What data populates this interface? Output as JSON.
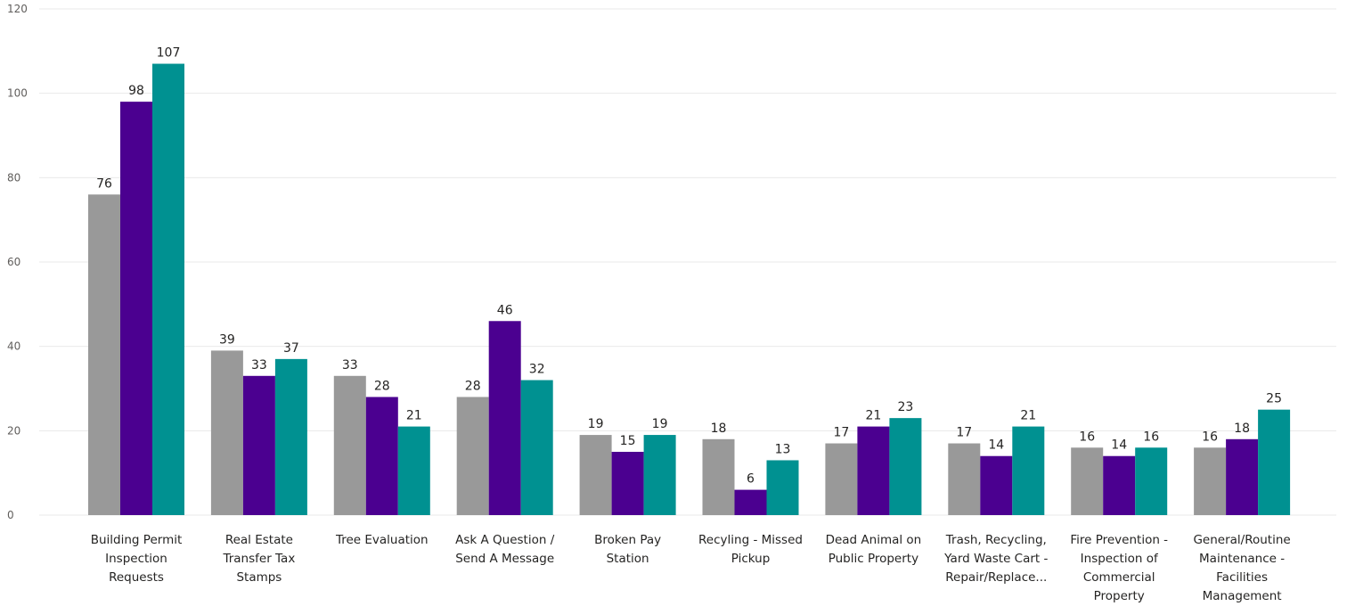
{
  "chart_data": {
    "type": "bar",
    "categories": [
      [
        "Building Permit",
        "Inspection",
        "Requests"
      ],
      [
        "Real Estate",
        "Transfer Tax",
        "Stamps"
      ],
      [
        "Tree Evaluation"
      ],
      [
        "Ask A Question /",
        "Send A Message"
      ],
      [
        "Broken Pay",
        "Station"
      ],
      [
        "Recyling - Missed",
        "Pickup"
      ],
      [
        "Dead Animal on",
        "Public Property"
      ],
      [
        "Trash, Recycling,",
        "Yard Waste Cart -",
        "Repair/Replace..."
      ],
      [
        "Fire Prevention -",
        "Inspection of",
        "Commercial",
        "Property"
      ],
      [
        "General/Routine",
        "Maintenance -",
        "Facilities",
        "Management"
      ]
    ],
    "series": [
      {
        "color": "#999999",
        "values": [
          76,
          39,
          33,
          28,
          19,
          18,
          17,
          17,
          16,
          16
        ]
      },
      {
        "color": "#4B0090",
        "values": [
          98,
          33,
          28,
          46,
          15,
          6,
          21,
          14,
          14,
          18
        ]
      },
      {
        "color": "#009191",
        "values": [
          107,
          37,
          21,
          32,
          19,
          13,
          23,
          21,
          16,
          25
        ]
      }
    ],
    "ylim": [
      0,
      120
    ],
    "yticks": [
      0,
      20,
      40,
      60,
      80,
      100,
      120
    ],
    "grid": true,
    "data_labels": true
  }
}
